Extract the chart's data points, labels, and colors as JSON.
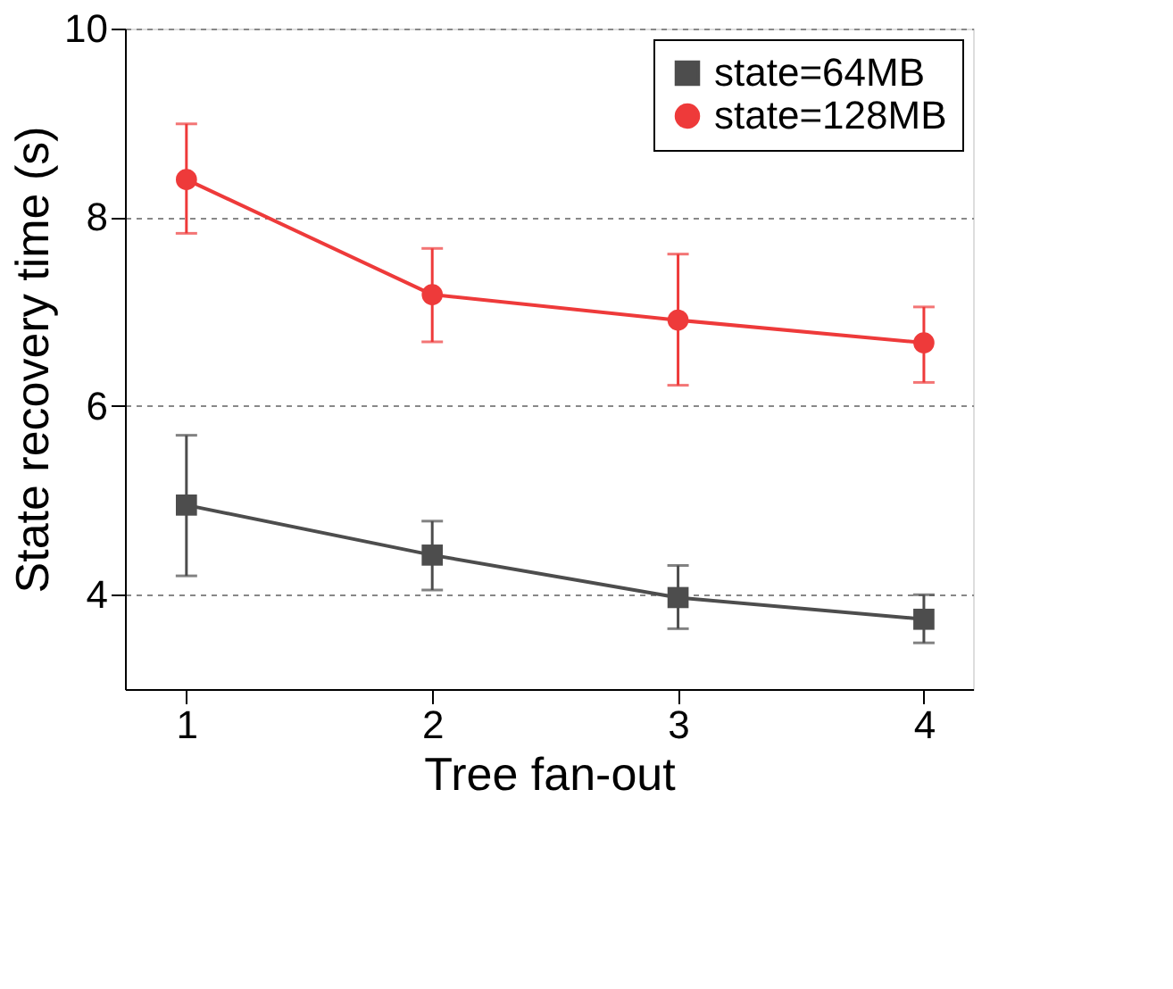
{
  "chart_data": {
    "type": "line",
    "xlabel": "Tree fan-out",
    "ylabel": "State recovery time (s)",
    "x": [
      1,
      2,
      3,
      4
    ],
    "xlim": [
      0.75,
      4.2
    ],
    "xticks": [
      1,
      2,
      3,
      4
    ],
    "ylim": [
      3,
      10
    ],
    "yticks": [
      4,
      6,
      8,
      10
    ],
    "grid": "y",
    "legend": "top right",
    "series": [
      {
        "name": "state=64MB",
        "color": "#4d4d4d",
        "marker": "square",
        "values": [
          4.95,
          4.42,
          3.97,
          3.74
        ],
        "errors": [
          [
            4.2,
            5.69
          ],
          [
            4.05,
            4.78
          ],
          [
            3.64,
            4.31
          ],
          [
            3.49,
            4.0
          ]
        ]
      },
      {
        "name": "state=128MB",
        "color": "#ee3a3a",
        "marker": "circle",
        "values": [
          8.4,
          7.18,
          6.91,
          6.67
        ],
        "errors": [
          [
            7.83,
            8.99
          ],
          [
            6.68,
            7.67
          ],
          [
            6.22,
            7.61
          ],
          [
            6.25,
            7.05
          ]
        ]
      }
    ]
  }
}
